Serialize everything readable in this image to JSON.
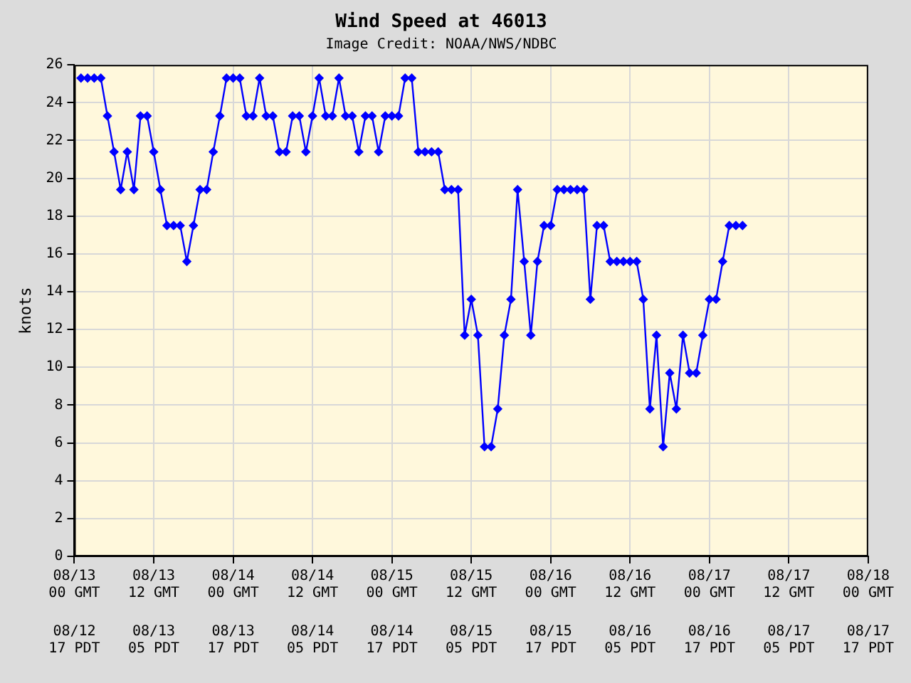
{
  "chart_data": {
    "type": "line",
    "title": "Wind Speed at 46013",
    "subtitle": "Image Credit: NOAA/NWS/NDBC",
    "ylabel": "knots",
    "x": [
      "--08-13T01:00",
      "--08-13T02:00",
      "--08-13T03:00",
      "--08-13T04:00",
      "--08-13T05:00",
      "--08-13T06:00",
      "--08-13T07:00",
      "--08-13T08:00",
      "--08-13T09:00",
      "--08-13T10:00",
      "--08-13T11:00",
      "--08-13T12:00",
      "--08-13T13:00",
      "--08-13T14:00",
      "--08-13T15:00",
      "--08-13T16:00",
      "--08-13T17:00",
      "--08-13T18:00",
      "--08-13T19:00",
      "--08-13T20:00",
      "--08-13T21:00",
      "--08-13T22:00",
      "--08-13T23:00",
      "--08-14T00:00",
      "--08-14T01:00",
      "--08-14T02:00",
      "--08-14T03:00",
      "--08-14T04:00",
      "--08-14T05:00",
      "--08-14T06:00",
      "--08-14T07:00",
      "--08-14T08:00",
      "--08-14T09:00",
      "--08-14T10:00",
      "--08-14T11:00",
      "--08-14T12:00",
      "--08-14T13:00",
      "--08-14T14:00",
      "--08-14T15:00",
      "--08-14T16:00",
      "--08-14T17:00",
      "--08-14T18:00",
      "--08-14T19:00",
      "--08-14T20:00",
      "--08-14T21:00",
      "--08-14T22:00",
      "--08-14T23:00",
      "--08-15T00:00",
      "--08-15T01:00",
      "--08-15T02:00",
      "--08-15T03:00",
      "--08-15T04:00",
      "--08-15T05:00",
      "--08-15T06:00",
      "--08-15T07:00",
      "--08-15T08:00",
      "--08-15T09:00",
      "--08-15T10:00",
      "--08-15T11:00",
      "--08-15T12:00",
      "--08-15T13:00",
      "--08-15T14:00",
      "--08-15T15:00",
      "--08-15T16:00",
      "--08-15T17:00",
      "--08-15T18:00",
      "--08-15T19:00",
      "--08-15T20:00",
      "--08-15T21:00",
      "--08-15T22:00",
      "--08-15T23:00",
      "--08-16T00:00",
      "--08-16T01:00",
      "--08-16T02:00",
      "--08-16T03:00",
      "--08-16T04:00",
      "--08-16T05:00",
      "--08-16T06:00",
      "--08-16T07:00",
      "--08-16T08:00",
      "--08-16T09:00",
      "--08-16T10:00",
      "--08-16T11:00",
      "--08-16T12:00",
      "--08-16T13:00",
      "--08-16T14:00",
      "--08-16T15:00",
      "--08-16T16:00",
      "--08-16T17:00",
      "--08-16T18:00",
      "--08-16T19:00",
      "--08-16T20:00",
      "--08-16T21:00",
      "--08-16T22:00",
      "--08-16T23:00",
      "--08-17T00:00",
      "--08-17T01:00",
      "--08-17T02:00",
      "--08-17T03:00",
      "--08-17T04:00",
      "--08-17T05:00"
    ],
    "series": [
      {
        "color": "#0000ff",
        "values": [
          25.3,
          25.3,
          25.3,
          25.3,
          23.3,
          21.4,
          19.4,
          21.4,
          19.4,
          23.3,
          23.3,
          21.4,
          19.4,
          17.5,
          17.5,
          17.5,
          15.6,
          17.5,
          19.4,
          19.4,
          21.4,
          23.3,
          25.3,
          25.3,
          25.3,
          23.3,
          23.3,
          25.3,
          23.3,
          23.3,
          21.4,
          21.4,
          23.3,
          23.3,
          21.4,
          23.3,
          25.3,
          23.3,
          23.3,
          25.3,
          23.3,
          23.3,
          21.4,
          23.3,
          23.3,
          21.4,
          23.3,
          23.3,
          23.3,
          25.3,
          25.3,
          21.4,
          21.4,
          21.4,
          21.4,
          19.4,
          19.4,
          19.4,
          11.7,
          13.6,
          11.7,
          5.8,
          5.8,
          7.8,
          11.7,
          13.6,
          19.4,
          15.6,
          11.7,
          15.6,
          17.5,
          17.5,
          19.4,
          19.4,
          19.4,
          19.4,
          19.4,
          13.6,
          17.5,
          17.5,
          15.6,
          15.6,
          15.6,
          15.6,
          15.6,
          13.6,
          7.8,
          11.7,
          5.8,
          9.7,
          7.8,
          11.7,
          9.7,
          9.7,
          11.7,
          13.6,
          13.6,
          15.6,
          17.5,
          17.5,
          17.5
        ]
      }
    ],
    "xlim": [
      "--08-13T00:00",
      "--08-18T00:00"
    ],
    "xticks": [
      {
        "value": "--08-13T00:00",
        "label": "08/13\n00 GMT"
      },
      {
        "value": "--08-13T12:00",
        "label": "08/13\n12 GMT"
      },
      {
        "value": "--08-14T00:00",
        "label": "08/14\n00 GMT"
      },
      {
        "value": "--08-14T12:00",
        "label": "08/14\n12 GMT"
      },
      {
        "value": "--08-15T00:00",
        "label": "08/15\n00 GMT"
      },
      {
        "value": "--08-15T12:00",
        "label": "08/15\n12 GMT"
      },
      {
        "value": "--08-16T00:00",
        "label": "08/16\n00 GMT"
      },
      {
        "value": "--08-16T12:00",
        "label": "08/16\n12 GMT"
      },
      {
        "value": "--08-17T00:00",
        "label": "08/17\n00 GMT"
      },
      {
        "value": "--08-17T12:00",
        "label": "08/17\n12 GMT"
      },
      {
        "value": "--08-18T00:00",
        "label": "08/18\n00 GMT"
      }
    ],
    "x2lim": [
      "--08-13T00:00",
      "--08-18T00:00"
    ],
    "x2ticks": [
      {
        "value": "--08-13T00:00",
        "label": "08/12\n17 PDT"
      },
      {
        "value": "--08-13T12:00",
        "label": "08/13\n05 PDT"
      },
      {
        "value": "--08-14T00:00",
        "label": "08/13\n17 PDT"
      },
      {
        "value": "--08-14T12:00",
        "label": "08/14\n05 PDT"
      },
      {
        "value": "--08-15T00:00",
        "label": "08/14\n17 PDT"
      },
      {
        "value": "--08-15T12:00",
        "label": "08/15\n05 PDT"
      },
      {
        "value": "--08-16T00:00",
        "label": "08/15\n17 PDT"
      },
      {
        "value": "--08-16T12:00",
        "label": "08/16\n05 PDT"
      },
      {
        "value": "--08-17T00:00",
        "label": "08/16\n17 PDT"
      },
      {
        "value": "--08-17T12:00",
        "label": "08/17\n05 PDT"
      },
      {
        "value": "--08-18T00:00",
        "label": "08/17\n17 PDT"
      }
    ],
    "ylim": [
      0,
      26
    ],
    "yticks": [
      0,
      2,
      4,
      6,
      8,
      10,
      12,
      14,
      16,
      18,
      20,
      22,
      24,
      26
    ],
    "grid": true,
    "legend": false,
    "marker": "diamond",
    "line_style": "solid"
  }
}
